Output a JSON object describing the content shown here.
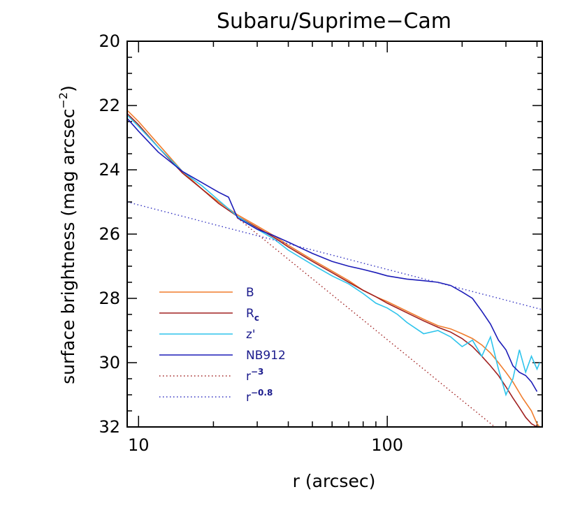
{
  "chart_data": {
    "type": "line",
    "title": "Subaru/Suprime−Cam",
    "xlabel": "r (arcsec)",
    "ylabel": "surface brightness (mag arcsec",
    "xscale": "log",
    "xlim": [
      9,
      420
    ],
    "ylim": [
      32,
      20
    ],
    "y_inverted": true,
    "xticks": [
      10,
      100
    ],
    "xtick_labels": [
      "10",
      "100"
    ],
    "yticks": [
      20,
      22,
      24,
      26,
      28,
      30,
      32
    ],
    "ytick_labels": [
      "20",
      "22",
      "24",
      "26",
      "28",
      "30",
      "32"
    ],
    "legend_position": "lower-left",
    "series": [
      {
        "name": "B",
        "base": "B",
        "sub": "",
        "sup": "",
        "color": "#f07c2c",
        "dash": false,
        "x": [
          9,
          10,
          12,
          15,
          18,
          21,
          25,
          30,
          35,
          40,
          50,
          60,
          70,
          80,
          90,
          100,
          120,
          140,
          160,
          180,
          200,
          220,
          240,
          260,
          280,
          300,
          320,
          350,
          380,
          400,
          410
        ],
        "y": [
          22.15,
          22.5,
          23.2,
          24.05,
          24.6,
          25.0,
          25.4,
          25.75,
          26.05,
          26.35,
          26.8,
          27.15,
          27.45,
          27.75,
          27.95,
          28.1,
          28.4,
          28.65,
          28.85,
          28.95,
          29.1,
          29.25,
          29.45,
          29.7,
          30.0,
          30.3,
          30.6,
          31.1,
          31.5,
          31.9,
          32.0
        ]
      },
      {
        "name": "Rc",
        "base": "R",
        "sub": "c",
        "sup": "",
        "color": "#a02020",
        "dash": false,
        "x": [
          9,
          10,
          12,
          15,
          18,
          21,
          25,
          30,
          35,
          40,
          50,
          60,
          70,
          80,
          90,
          100,
          120,
          140,
          160,
          180,
          200,
          220,
          240,
          260,
          280,
          300,
          320,
          340,
          360,
          380,
          400
        ],
        "y": [
          22.25,
          22.6,
          23.3,
          24.1,
          24.6,
          25.05,
          25.45,
          25.8,
          26.1,
          26.4,
          26.85,
          27.2,
          27.5,
          27.75,
          27.95,
          28.15,
          28.45,
          28.7,
          28.9,
          29.05,
          29.25,
          29.5,
          29.8,
          30.1,
          30.4,
          30.75,
          31.1,
          31.4,
          31.7,
          31.9,
          32.0
        ]
      },
      {
        "name": "z'",
        "base": "z'",
        "sub": "",
        "sup": "",
        "color": "#2ec4ec",
        "dash": false,
        "x": [
          9,
          10,
          12,
          15,
          18,
          21,
          25,
          30,
          35,
          40,
          50,
          60,
          70,
          80,
          90,
          100,
          110,
          120,
          140,
          160,
          180,
          200,
          220,
          240,
          260,
          280,
          300,
          320,
          340,
          360,
          380,
          400,
          410
        ],
        "y": [
          22.3,
          22.65,
          23.3,
          24.05,
          24.5,
          24.95,
          25.45,
          25.85,
          26.15,
          26.5,
          26.95,
          27.3,
          27.55,
          27.85,
          28.15,
          28.3,
          28.5,
          28.75,
          29.1,
          29.0,
          29.2,
          29.5,
          29.3,
          29.8,
          29.2,
          30.2,
          31.0,
          30.5,
          29.6,
          30.3,
          29.8,
          30.2,
          30.0
        ]
      },
      {
        "name": "NB912",
        "base": "NB912",
        "sub": "",
        "sup": "",
        "color": "#1c1cb8",
        "dash": false,
        "x": [
          9,
          10,
          12,
          15,
          18,
          21,
          23,
          25,
          30,
          35,
          40,
          50,
          60,
          70,
          80,
          90,
          100,
          120,
          140,
          160,
          180,
          200,
          220,
          240,
          260,
          280,
          300,
          320,
          340,
          360,
          380,
          400
        ],
        "y": [
          22.4,
          22.8,
          23.45,
          24.05,
          24.4,
          24.7,
          24.85,
          25.5,
          25.85,
          26.05,
          26.25,
          26.6,
          26.85,
          27.0,
          27.1,
          27.2,
          27.3,
          27.4,
          27.45,
          27.5,
          27.6,
          27.8,
          28.0,
          28.4,
          28.8,
          29.3,
          29.6,
          30.1,
          30.3,
          30.4,
          30.6,
          30.9
        ]
      },
      {
        "name": "r^-3",
        "base": "r",
        "sub": "",
        "sup": "−3",
        "color": "#a02020",
        "dash": true,
        "x": [
          25,
          420
        ],
        "y": [
          25.5,
          33.2
        ]
      },
      {
        "name": "r^-0.8",
        "base": "r",
        "sub": "",
        "sup": "−0.8",
        "color": "#3030c0",
        "dash": true,
        "x": [
          9,
          420
        ],
        "y": [
          25.0,
          28.35
        ]
      }
    ]
  }
}
